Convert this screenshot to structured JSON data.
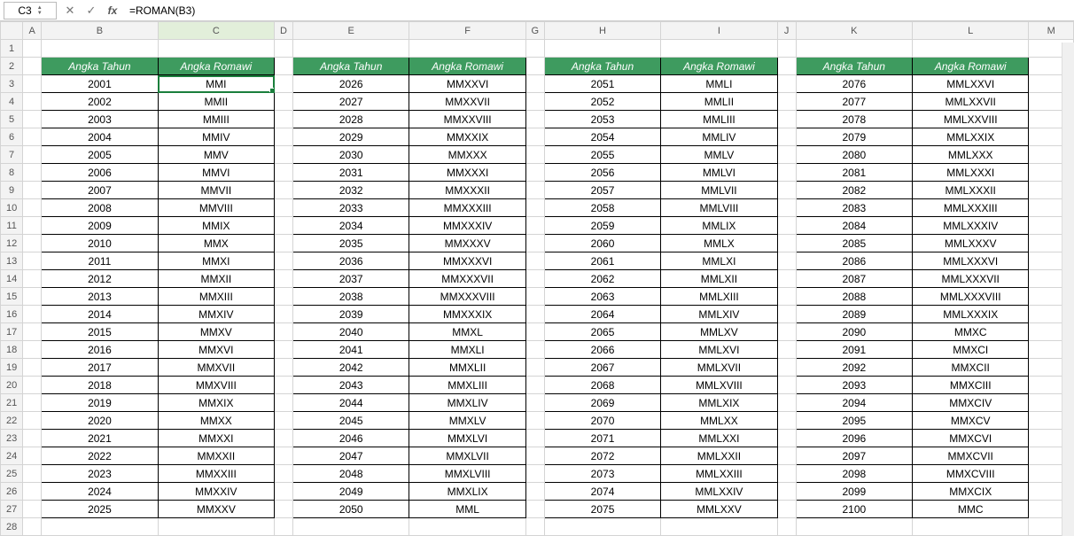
{
  "formula_bar": {
    "namebox": "C3",
    "formula": "=ROMAN(B3)"
  },
  "colors": {
    "header_bg": "#3e9b5f",
    "header_fg": "#ffffff",
    "selection": "#1a7f3c"
  },
  "column_letters": [
    "A",
    "B",
    "C",
    "D",
    "E",
    "F",
    "G",
    "H",
    "I",
    "J",
    "K",
    "L",
    "M"
  ],
  "row_numbers": [
    1,
    2,
    3,
    4,
    5,
    6,
    7,
    8,
    9,
    10,
    11,
    12,
    13,
    14,
    15,
    16,
    17,
    18,
    19,
    20,
    21,
    22,
    23,
    24,
    25,
    26,
    27,
    28
  ],
  "selected_cell": "C3",
  "headers": {
    "year": "Angka Tahun",
    "roman": "Angka Romawi"
  },
  "tables": [
    {
      "cols": [
        "B",
        "C"
      ],
      "rows": [
        {
          "year": 2001,
          "roman": "MMI"
        },
        {
          "year": 2002,
          "roman": "MMII"
        },
        {
          "year": 2003,
          "roman": "MMIII"
        },
        {
          "year": 2004,
          "roman": "MMIV"
        },
        {
          "year": 2005,
          "roman": "MMV"
        },
        {
          "year": 2006,
          "roman": "MMVI"
        },
        {
          "year": 2007,
          "roman": "MMVII"
        },
        {
          "year": 2008,
          "roman": "MMVIII"
        },
        {
          "year": 2009,
          "roman": "MMIX"
        },
        {
          "year": 2010,
          "roman": "MMX"
        },
        {
          "year": 2011,
          "roman": "MMXI"
        },
        {
          "year": 2012,
          "roman": "MMXII"
        },
        {
          "year": 2013,
          "roman": "MMXIII"
        },
        {
          "year": 2014,
          "roman": "MMXIV"
        },
        {
          "year": 2015,
          "roman": "MMXV"
        },
        {
          "year": 2016,
          "roman": "MMXVI"
        },
        {
          "year": 2017,
          "roman": "MMXVII"
        },
        {
          "year": 2018,
          "roman": "MMXVIII"
        },
        {
          "year": 2019,
          "roman": "MMXIX"
        },
        {
          "year": 2020,
          "roman": "MMXX"
        },
        {
          "year": 2021,
          "roman": "MMXXI"
        },
        {
          "year": 2022,
          "roman": "MMXXII"
        },
        {
          "year": 2023,
          "roman": "MMXXIII"
        },
        {
          "year": 2024,
          "roman": "MMXXIV"
        },
        {
          "year": 2025,
          "roman": "MMXXV"
        }
      ]
    },
    {
      "cols": [
        "E",
        "F"
      ],
      "rows": [
        {
          "year": 2026,
          "roman": "MMXXVI"
        },
        {
          "year": 2027,
          "roman": "MMXXVII"
        },
        {
          "year": 2028,
          "roman": "MMXXVIII"
        },
        {
          "year": 2029,
          "roman": "MMXXIX"
        },
        {
          "year": 2030,
          "roman": "MMXXX"
        },
        {
          "year": 2031,
          "roman": "MMXXXI"
        },
        {
          "year": 2032,
          "roman": "MMXXXII"
        },
        {
          "year": 2033,
          "roman": "MMXXXIII"
        },
        {
          "year": 2034,
          "roman": "MMXXXIV"
        },
        {
          "year": 2035,
          "roman": "MMXXXV"
        },
        {
          "year": 2036,
          "roman": "MMXXXVI"
        },
        {
          "year": 2037,
          "roman": "MMXXXVII"
        },
        {
          "year": 2038,
          "roman": "MMXXXVIII"
        },
        {
          "year": 2039,
          "roman": "MMXXXIX"
        },
        {
          "year": 2040,
          "roman": "MMXL"
        },
        {
          "year": 2041,
          "roman": "MMXLI"
        },
        {
          "year": 2042,
          "roman": "MMXLII"
        },
        {
          "year": 2043,
          "roman": "MMXLIII"
        },
        {
          "year": 2044,
          "roman": "MMXLIV"
        },
        {
          "year": 2045,
          "roman": "MMXLV"
        },
        {
          "year": 2046,
          "roman": "MMXLVI"
        },
        {
          "year": 2047,
          "roman": "MMXLVII"
        },
        {
          "year": 2048,
          "roman": "MMXLVIII"
        },
        {
          "year": 2049,
          "roman": "MMXLIX"
        },
        {
          "year": 2050,
          "roman": "MML"
        }
      ]
    },
    {
      "cols": [
        "H",
        "I"
      ],
      "rows": [
        {
          "year": 2051,
          "roman": "MMLI"
        },
        {
          "year": 2052,
          "roman": "MMLII"
        },
        {
          "year": 2053,
          "roman": "MMLIII"
        },
        {
          "year": 2054,
          "roman": "MMLIV"
        },
        {
          "year": 2055,
          "roman": "MMLV"
        },
        {
          "year": 2056,
          "roman": "MMLVI"
        },
        {
          "year": 2057,
          "roman": "MMLVII"
        },
        {
          "year": 2058,
          "roman": "MMLVIII"
        },
        {
          "year": 2059,
          "roman": "MMLIX"
        },
        {
          "year": 2060,
          "roman": "MMLX"
        },
        {
          "year": 2061,
          "roman": "MMLXI"
        },
        {
          "year": 2062,
          "roman": "MMLXII"
        },
        {
          "year": 2063,
          "roman": "MMLXIII"
        },
        {
          "year": 2064,
          "roman": "MMLXIV"
        },
        {
          "year": 2065,
          "roman": "MMLXV"
        },
        {
          "year": 2066,
          "roman": "MMLXVI"
        },
        {
          "year": 2067,
          "roman": "MMLXVII"
        },
        {
          "year": 2068,
          "roman": "MMLXVIII"
        },
        {
          "year": 2069,
          "roman": "MMLXIX"
        },
        {
          "year": 2070,
          "roman": "MMLXX"
        },
        {
          "year": 2071,
          "roman": "MMLXXI"
        },
        {
          "year": 2072,
          "roman": "MMLXXII"
        },
        {
          "year": 2073,
          "roman": "MMLXXIII"
        },
        {
          "year": 2074,
          "roman": "MMLXXIV"
        },
        {
          "year": 2075,
          "roman": "MMLXXV"
        }
      ]
    },
    {
      "cols": [
        "K",
        "L"
      ],
      "rows": [
        {
          "year": 2076,
          "roman": "MMLXXVI"
        },
        {
          "year": 2077,
          "roman": "MMLXXVII"
        },
        {
          "year": 2078,
          "roman": "MMLXXVIII"
        },
        {
          "year": 2079,
          "roman": "MMLXXIX"
        },
        {
          "year": 2080,
          "roman": "MMLXXX"
        },
        {
          "year": 2081,
          "roman": "MMLXXXI"
        },
        {
          "year": 2082,
          "roman": "MMLXXXII"
        },
        {
          "year": 2083,
          "roman": "MMLXXXIII"
        },
        {
          "year": 2084,
          "roman": "MMLXXXIV"
        },
        {
          "year": 2085,
          "roman": "MMLXXXV"
        },
        {
          "year": 2086,
          "roman": "MMLXXXVI"
        },
        {
          "year": 2087,
          "roman": "MMLXXXVII"
        },
        {
          "year": 2088,
          "roman": "MMLXXXVIII"
        },
        {
          "year": 2089,
          "roman": "MMLXXXIX"
        },
        {
          "year": 2090,
          "roman": "MMXC"
        },
        {
          "year": 2091,
          "roman": "MMXCI"
        },
        {
          "year": 2092,
          "roman": "MMXCII"
        },
        {
          "year": 2093,
          "roman": "MMXCIII"
        },
        {
          "year": 2094,
          "roman": "MMXCIV"
        },
        {
          "year": 2095,
          "roman": "MMXCV"
        },
        {
          "year": 2096,
          "roman": "MMXCVI"
        },
        {
          "year": 2097,
          "roman": "MMXCVII"
        },
        {
          "year": 2098,
          "roman": "MMXCVIII"
        },
        {
          "year": 2099,
          "roman": "MMXCIX"
        },
        {
          "year": 2100,
          "roman": "MMC"
        }
      ]
    }
  ]
}
